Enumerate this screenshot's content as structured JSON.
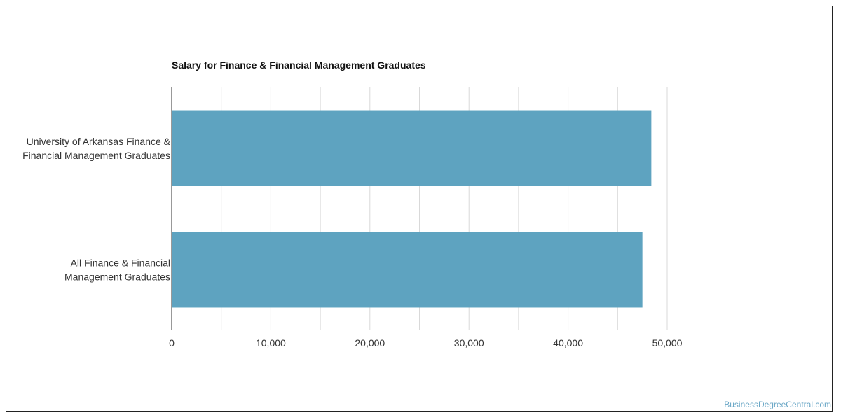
{
  "chart_data": {
    "type": "bar",
    "orientation": "horizontal",
    "title": "Salary for Finance & Financial Management Graduates",
    "categories": [
      "University of Arkansas Finance & Financial Management Graduates",
      "All Finance & Financial Management Graduates"
    ],
    "category_lines": [
      [
        "University of Arkansas Finance &",
        "Financial Management Graduates"
      ],
      [
        "All Finance & Financial",
        "Management Graduates"
      ]
    ],
    "values": [
      48400,
      47500
    ],
    "xlim": [
      0,
      50000
    ],
    "xticks": [
      0,
      10000,
      20000,
      30000,
      40000,
      50000
    ],
    "xtick_labels": [
      "0",
      "10,000",
      "20,000",
      "30,000",
      "40,000",
      "50,000"
    ],
    "xlabel": "",
    "ylabel": "",
    "grid": true,
    "bar_color": "#5ea3c0",
    "grid_color": "#d9d9d9"
  },
  "watermark": "BusinessDegreeCentral.com"
}
